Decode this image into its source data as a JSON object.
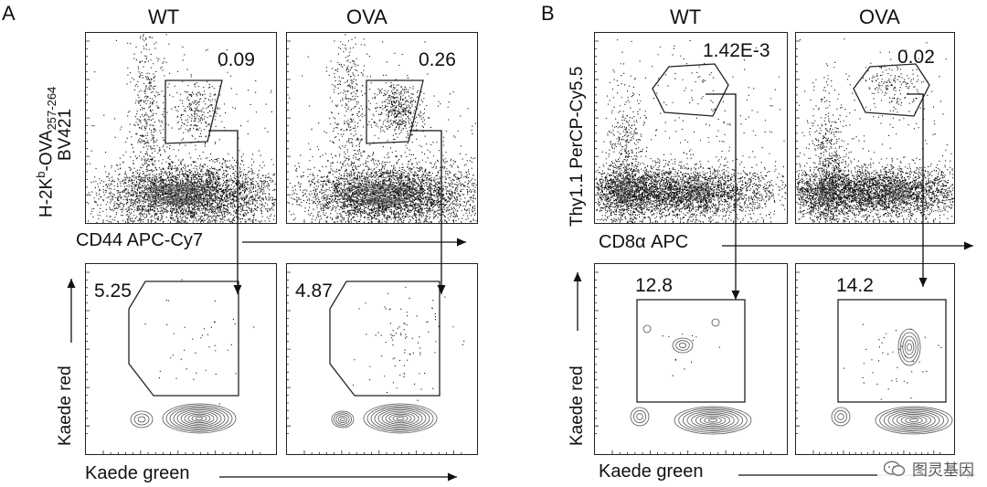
{
  "chart_data": {
    "type": "scatter",
    "panels": [
      "A",
      "B"
    ],
    "columns": [
      "WT",
      "OVA"
    ],
    "charts": [
      {
        "panel": "A",
        "row": "top",
        "group": "WT",
        "gate_value": "0.09",
        "xlabel": "CD44 APC-Cy7",
        "ylabel": "H-2Kb-OVA257-264 BV421",
        "gate_shape": "quadrilateral"
      },
      {
        "panel": "A",
        "row": "top",
        "group": "OVA",
        "gate_value": "0.26",
        "xlabel": "CD44 APC-Cy7",
        "ylabel": "H-2Kb-OVA257-264 BV421",
        "gate_shape": "quadrilateral"
      },
      {
        "panel": "A",
        "row": "bottom",
        "group": "WT",
        "gate_value": "5.25",
        "xlabel": "Kaede green",
        "ylabel": "Kaede red",
        "gate_shape": "polygon"
      },
      {
        "panel": "A",
        "row": "bottom",
        "group": "OVA",
        "gate_value": "4.87",
        "xlabel": "Kaede green",
        "ylabel": "Kaede red",
        "gate_shape": "polygon"
      },
      {
        "panel": "B",
        "row": "top",
        "group": "WT",
        "gate_value": "1.42E-3",
        "xlabel": "CD8α APC",
        "ylabel": "Thy1.1 PerCP-Cy5.5",
        "gate_shape": "polygon"
      },
      {
        "panel": "B",
        "row": "top",
        "group": "OVA",
        "gate_value": "0.02",
        "xlabel": "CD8α APC",
        "ylabel": "Thy1.1 PerCP-Cy5.5",
        "gate_shape": "polygon"
      },
      {
        "panel": "B",
        "row": "bottom",
        "group": "WT",
        "gate_value": "12.8",
        "xlabel": "Kaede green",
        "ylabel": "Kaede red",
        "gate_shape": "rectangle"
      },
      {
        "panel": "B",
        "row": "bottom",
        "group": "OVA",
        "gate_value": "14.2",
        "xlabel": "Kaede green",
        "ylabel": "Kaede red",
        "gate_shape": "rectangle"
      }
    ]
  },
  "labels": {
    "panel_a": "A",
    "panel_b": "B",
    "wt": "WT",
    "ova": "OVA",
    "a_top_wt_value": "0.09",
    "a_top_ova_value": "0.26",
    "a_bot_wt_value": "5.25",
    "a_bot_ova_value": "4.87",
    "b_top_wt_value": "1.42E-3",
    "b_top_ova_value": "0.02",
    "b_bot_wt_value": "12.8",
    "b_bot_ova_value": "14.2",
    "a_x_top": "CD44 APC-Cy7",
    "a_y_top_main": "H-2K",
    "a_y_top_sup": "b",
    "a_y_top_rest": "-OVA",
    "a_y_top_sub": "257-264",
    "a_y_top_line2": "BV421",
    "b_x_top": "CD8α APC",
    "b_y_top": "Thy1.1 PerCP-Cy5.5",
    "x_bottom": "Kaede green",
    "y_bottom": "Kaede red"
  },
  "watermark": {
    "text": "图灵基因"
  }
}
